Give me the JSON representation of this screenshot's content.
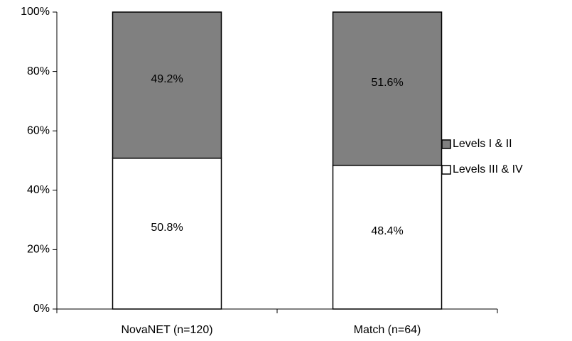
{
  "chart_data": {
    "type": "stacked_bar",
    "categories": [
      "NovaNET (n=120)",
      "Match (n=64)"
    ],
    "series": [
      {
        "name": "Levels III & IV",
        "color": "#ffffff",
        "values": [
          50.8,
          48.4
        ],
        "value_labels": [
          "50.8%",
          "48.4%"
        ]
      },
      {
        "name": "Levels I & II",
        "color": "#808080",
        "values": [
          49.2,
          51.6
        ],
        "value_labels": [
          "49.2%",
          "51.6%"
        ]
      }
    ],
    "ylim": [
      0,
      100
    ],
    "yticks": [
      {
        "value": 0,
        "label": "0%"
      },
      {
        "value": 20,
        "label": "20%"
      },
      {
        "value": 40,
        "label": "40%"
      },
      {
        "value": 60,
        "label": "60%"
      },
      {
        "value": 80,
        "label": "80%"
      },
      {
        "value": 100,
        "label": "100%"
      }
    ],
    "legend": "right"
  }
}
